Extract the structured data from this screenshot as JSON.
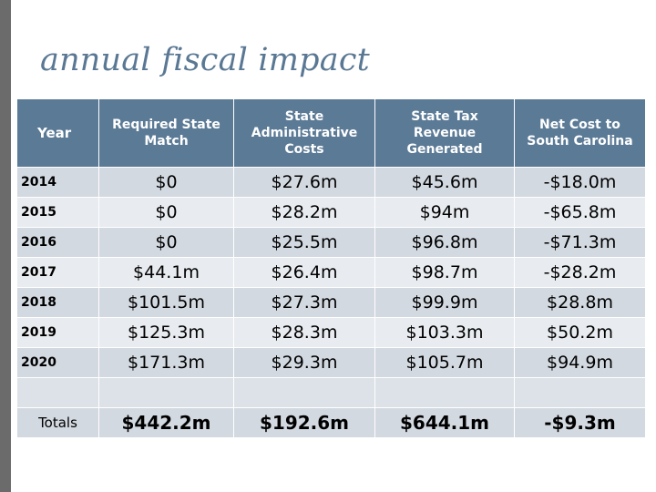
{
  "slide": {
    "title": "annual fiscal impact"
  },
  "table": {
    "headers": {
      "year": "Year",
      "required_match": "Required State Match",
      "admin_costs": "State Administrative Costs",
      "tax_revenue": "State Tax Revenue Generated",
      "net_cost": "Net Cost to South Carolina"
    },
    "rows": [
      {
        "year": "2014",
        "required_match": "$0",
        "admin_costs": "$27.6m",
        "tax_revenue": "$45.6m",
        "net_cost": "-$18.0m"
      },
      {
        "year": "2015",
        "required_match": "$0",
        "admin_costs": "$28.2m",
        "tax_revenue": "$94m",
        "net_cost": "-$65.8m"
      },
      {
        "year": "2016",
        "required_match": "$0",
        "admin_costs": "$25.5m",
        "tax_revenue": "$96.8m",
        "net_cost": "-$71.3m"
      },
      {
        "year": "2017",
        "required_match": "$44.1m",
        "admin_costs": "$26.4m",
        "tax_revenue": "$98.7m",
        "net_cost": "-$28.2m"
      },
      {
        "year": "2018",
        "required_match": "$101.5m",
        "admin_costs": "$27.3m",
        "tax_revenue": "$99.9m",
        "net_cost": "$28.8m"
      },
      {
        "year": "2019",
        "required_match": "$125.3m",
        "admin_costs": "$28.3m",
        "tax_revenue": "$103.3m",
        "net_cost": "$50.2m"
      },
      {
        "year": "2020",
        "required_match": "$171.3m",
        "admin_costs": "$29.3m",
        "tax_revenue": "$105.7m",
        "net_cost": "$94.9m"
      }
    ],
    "totals": {
      "label": "Totals",
      "required_match": "$442.2m",
      "admin_costs": "$192.6m",
      "tax_revenue": "$644.1m",
      "net_cost": "-$9.3m"
    }
  },
  "colors": {
    "header_bg": "#5b7a96",
    "title": "#5a7894",
    "row_dark": "#d3d9e1",
    "row_light": "#e8ebef",
    "left_bar": "#6b6b6b"
  }
}
